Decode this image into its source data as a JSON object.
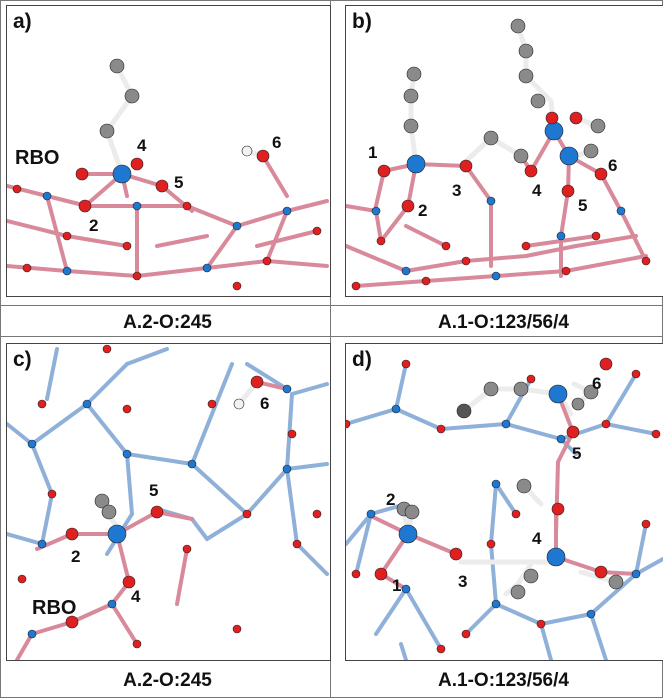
{
  "panels": [
    {
      "id": "a",
      "label": "a)",
      "caption": "A.2-O:245",
      "annotations": [
        "RBO",
        "4",
        "5",
        "6",
        "2"
      ]
    },
    {
      "id": "b",
      "label": "b)",
      "caption": "A.1-O:123/56/4",
      "annotations": [
        "1",
        "2",
        "3",
        "4",
        "5",
        "6"
      ]
    },
    {
      "id": "c",
      "label": "c)",
      "caption": "A.2-O:245",
      "annotations": [
        "5",
        "6",
        "2",
        "4",
        "RBO"
      ]
    },
    {
      "id": "d",
      "label": "d)",
      "caption": "A.1-O:123/56/4",
      "annotations": [
        "6",
        "5",
        "2",
        "4",
        "1",
        "3"
      ]
    }
  ],
  "colors": {
    "oxygen": "#e02020",
    "boron": "#1e78d2",
    "carbon": "#8a8a8a",
    "hydrogen": "#f2f2f2",
    "bond_o": "#e86a6a",
    "bond_b": "#6a9fd8",
    "bond_c": "#d0d0d0"
  }
}
